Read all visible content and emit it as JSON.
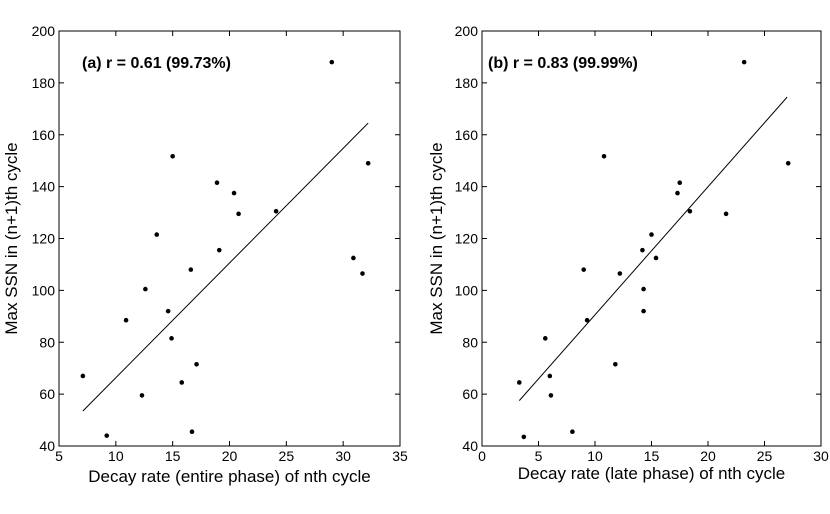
{
  "chart_data": [
    {
      "type": "scatter",
      "panel": "a",
      "annotation": "(a) r = 0.61 (99.73%)",
      "xlabel": "Decay rate (entire phase) of nth cycle",
      "ylabel": "Max SSN in (n+1)th cycle",
      "xlim": [
        5,
        35
      ],
      "ylim": [
        40,
        200
      ],
      "xticks": [
        5,
        10,
        15,
        20,
        25,
        30,
        35
      ],
      "yticks": [
        40,
        60,
        80,
        100,
        120,
        140,
        160,
        180,
        200
      ],
      "points": [
        {
          "x": 7.1,
          "y": 67
        },
        {
          "x": 9.2,
          "y": 44
        },
        {
          "x": 10.9,
          "y": 88.5
        },
        {
          "x": 12.3,
          "y": 59.5
        },
        {
          "x": 12.6,
          "y": 100.5
        },
        {
          "x": 13.6,
          "y": 121.5
        },
        {
          "x": 14.6,
          "y": 92
        },
        {
          "x": 14.9,
          "y": 81.5
        },
        {
          "x": 15.0,
          "y": 151.7
        },
        {
          "x": 15.8,
          "y": 64.5
        },
        {
          "x": 16.6,
          "y": 108
        },
        {
          "x": 16.7,
          "y": 45.5
        },
        {
          "x": 17.1,
          "y": 71.5
        },
        {
          "x": 18.9,
          "y": 141.5
        },
        {
          "x": 19.1,
          "y": 115.5
        },
        {
          "x": 20.4,
          "y": 137.5
        },
        {
          "x": 20.8,
          "y": 129.5
        },
        {
          "x": 24.1,
          "y": 130.5
        },
        {
          "x": 29.0,
          "y": 188
        },
        {
          "x": 30.9,
          "y": 112.5
        },
        {
          "x": 31.7,
          "y": 106.5
        },
        {
          "x": 32.2,
          "y": 149
        }
      ],
      "fit_line": {
        "x": [
          7.1,
          32.2
        ],
        "y": [
          53.5,
          164.5
        ]
      }
    },
    {
      "type": "scatter",
      "panel": "b",
      "annotation": "(b) r = 0.83 (99.99%)",
      "xlabel": "Decay rate (late phase) of nth cycle",
      "ylabel": "Max SSN in (n+1)th cycle",
      "xlim": [
        0,
        30
      ],
      "ylim": [
        40,
        200
      ],
      "xticks": [
        0,
        5,
        10,
        15,
        20,
        25,
        30
      ],
      "yticks": [
        40,
        60,
        80,
        100,
        120,
        140,
        160,
        180,
        200
      ],
      "points": [
        {
          "x": 3.3,
          "y": 64.5
        },
        {
          "x": 3.7,
          "y": 43.5
        },
        {
          "x": 5.6,
          "y": 81.5
        },
        {
          "x": 6.0,
          "y": 67
        },
        {
          "x": 6.1,
          "y": 59.5
        },
        {
          "x": 8.0,
          "y": 45.5
        },
        {
          "x": 9.0,
          "y": 108
        },
        {
          "x": 9.3,
          "y": 88.5
        },
        {
          "x": 10.8,
          "y": 151.7
        },
        {
          "x": 11.8,
          "y": 71.5
        },
        {
          "x": 12.2,
          "y": 106.5
        },
        {
          "x": 14.2,
          "y": 115.5
        },
        {
          "x": 14.3,
          "y": 100.5
        },
        {
          "x": 14.3,
          "y": 92
        },
        {
          "x": 15.0,
          "y": 121.5
        },
        {
          "x": 15.4,
          "y": 112.5
        },
        {
          "x": 17.3,
          "y": 137.5
        },
        {
          "x": 17.5,
          "y": 141.5
        },
        {
          "x": 18.4,
          "y": 130.5
        },
        {
          "x": 21.6,
          "y": 129.5
        },
        {
          "x": 23.2,
          "y": 188
        },
        {
          "x": 27.1,
          "y": 149
        }
      ],
      "fit_line": {
        "x": [
          3.3,
          27.0
        ],
        "y": [
          57.5,
          174.5
        ]
      }
    }
  ]
}
